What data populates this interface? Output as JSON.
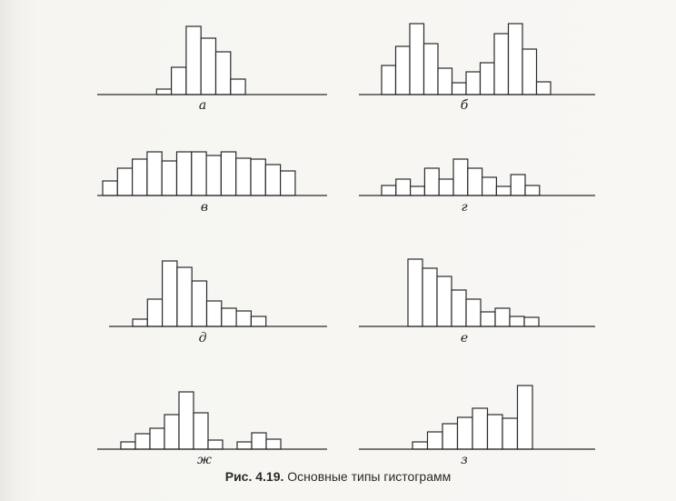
{
  "caption": {
    "prefix": "Рис. 4.19.",
    "text": "Основные типы гистограмм"
  },
  "colors": {
    "ink": "#2a2a2a",
    "bar_fill": "#ffffff",
    "background": "#f6f5f2"
  },
  "chart_data": [
    {
      "type": "bar",
      "label": "а",
      "title": "",
      "xlabel": "",
      "ylabel": "",
      "values": [
        0,
        0.06,
        0.3,
        0.75,
        0.62,
        0.47,
        0.17,
        0
      ]
    },
    {
      "type": "bar",
      "label": "б",
      "title": "",
      "xlabel": "",
      "ylabel": "",
      "values": [
        0.32,
        0.53,
        0.78,
        0.56,
        0.29,
        0.13,
        0.25,
        0.35,
        0.67,
        0.78,
        0.5,
        0.14
      ]
    },
    {
      "type": "bar",
      "label": "в",
      "title": "",
      "xlabel": "",
      "ylabel": "",
      "values": [
        0.16,
        0.3,
        0.4,
        0.48,
        0.38,
        0.48,
        0.48,
        0.44,
        0.48,
        0.41,
        0.4,
        0.34,
        0.27
      ]
    },
    {
      "type": "bar",
      "label": "г",
      "title": "",
      "xlabel": "",
      "ylabel": "",
      "values": [
        0.11,
        0.18,
        0.1,
        0.3,
        0.18,
        0.4,
        0.3,
        0.2,
        0.1,
        0.23,
        0.11
      ]
    },
    {
      "type": "bar",
      "label": "д",
      "title": "",
      "xlabel": "",
      "ylabel": "",
      "values": [
        0.08,
        0.3,
        0.72,
        0.65,
        0.5,
        0.28,
        0.2,
        0.17,
        0.11
      ]
    },
    {
      "type": "bar",
      "label": "е",
      "title": "",
      "xlabel": "",
      "ylabel": "",
      "values": [
        0.74,
        0.64,
        0.55,
        0.4,
        0.3,
        0.16,
        0.2,
        0.11,
        0.1
      ]
    },
    {
      "type": "bar",
      "label": "ж",
      "title": "",
      "xlabel": "",
      "ylabel": "",
      "values": [
        0.08,
        0.17,
        0.23,
        0.38,
        0.63,
        0.4,
        0.1,
        0,
        0.08,
        0.18,
        0.11
      ]
    },
    {
      "type": "bar",
      "label": "з",
      "title": "",
      "xlabel": "",
      "ylabel": "",
      "values": [
        0.08,
        0.19,
        0.28,
        0.35,
        0.45,
        0.38,
        0.34,
        0.7
      ]
    }
  ]
}
